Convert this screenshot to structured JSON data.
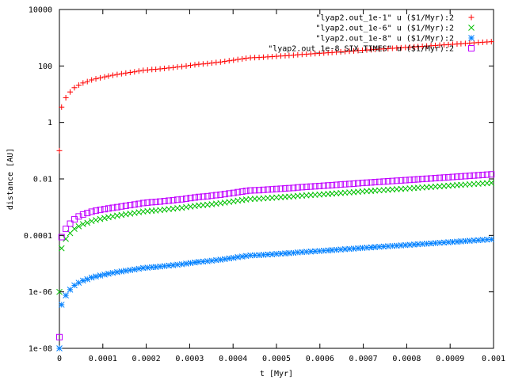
{
  "chart_data": {
    "type": "scatter",
    "xlabel": "t [Myr]",
    "ylabel": "distance [AU]",
    "xlim": [
      0,
      0.001
    ],
    "ylim": [
      1e-08,
      10000
    ],
    "yscale": "log",
    "grid": false,
    "legend_position": "top-right",
    "x_ticks": [
      {
        "value": 0,
        "label": "0"
      },
      {
        "value": 0.0001,
        "label": "0.0001"
      },
      {
        "value": 0.0002,
        "label": "0.0002"
      },
      {
        "value": 0.0003,
        "label": "0.0003"
      },
      {
        "value": 0.0004,
        "label": "0.0004"
      },
      {
        "value": 0.0005,
        "label": "0.0005"
      },
      {
        "value": 0.0006,
        "label": "0.0006"
      },
      {
        "value": 0.0007,
        "label": "0.0007"
      },
      {
        "value": 0.0008,
        "label": "0.0008"
      },
      {
        "value": 0.0009,
        "label": "0.0009"
      },
      {
        "value": 0.001,
        "label": "0.001"
      }
    ],
    "y_ticks": [
      {
        "value": 1e-08,
        "label": "1e-08"
      },
      {
        "value": 1e-06,
        "label": "1e-06"
      },
      {
        "value": 0.0001,
        "label": "0.0001"
      },
      {
        "value": 0.01,
        "label": "0.01"
      },
      {
        "value": 1,
        "label": "1"
      },
      {
        "value": 100,
        "label": "100"
      },
      {
        "value": 10000,
        "label": "10000"
      }
    ],
    "series": [
      {
        "name": "\"lyap2.out_1e-1\" u ($1/Myr):2",
        "marker": "plus",
        "color": "#ff0000",
        "x": [
          0,
          5e-06,
          1.48e-05,
          2.47e-05,
          3.46e-05,
          4.45e-05,
          5.44e-05,
          6.43e-05,
          7.42e-05,
          8.4e-05,
          9.4e-05,
          0.000104,
          0.000113,
          0.000123,
          0.000133,
          0.000143,
          0.000153,
          0.000163,
          0.000173,
          0.000183,
          0.000193,
          0.000203,
          0.000213,
          0.000222,
          0.000232,
          0.000242,
          0.000252,
          0.000262,
          0.000272,
          0.000282,
          0.000292,
          0.000302,
          0.000312,
          0.000321,
          0.000331,
          0.000341,
          0.000351,
          0.000361,
          0.000371,
          0.000381,
          0.000391,
          0.000401,
          0.000411,
          0.000421,
          0.00043,
          0.00044,
          0.00045,
          0.00046,
          0.00047,
          0.00048,
          0.00049,
          0.0005,
          0.00051,
          0.00052,
          0.000529,
          0.000539,
          0.000549,
          0.000559,
          0.000569,
          0.000579,
          0.000589,
          0.000599,
          0.000609,
          0.000619,
          0.000628,
          0.000638,
          0.000648,
          0.000658,
          0.000668,
          0.000678,
          0.000688,
          0.000698,
          0.000708,
          0.000718,
          0.000727,
          0.000737,
          0.000747,
          0.000757,
          0.000767,
          0.000777,
          0.000787,
          0.000797,
          0.000807,
          0.000817,
          0.000826,
          0.000836,
          0.000846,
          0.000856,
          0.000866,
          0.000876,
          0.000886,
          0.000896,
          0.000906,
          0.000916,
          0.000925,
          0.000935,
          0.000945,
          0.000955,
          0.000965,
          0.000975,
          0.000985,
          0.000995
        ],
        "y": [
          0.1,
          3.5,
          7.5,
          12,
          17,
          21,
          25,
          28,
          32,
          35,
          38,
          41,
          44,
          47,
          50,
          53,
          56,
          59,
          62,
          66,
          70,
          72,
          75,
          76,
          79,
          82,
          85,
          88,
          92,
          95,
          100,
          105,
          110,
          115,
          118,
          122,
          127,
          133,
          138,
          145,
          153,
          160,
          170,
          178,
          187,
          195,
          198,
          200,
          205,
          210,
          214,
          220,
          225,
          230,
          235,
          240,
          250,
          256,
          262,
          268,
          274,
          280,
          287,
          294,
          300,
          308,
          316,
          324,
          332,
          340,
          350,
          360,
          368,
          376,
          385,
          394,
          403,
          412,
          422,
          432,
          442,
          452,
          463,
          474,
          485,
          497,
          508,
          520,
          533,
          546,
          559,
          572,
          586,
          600,
          614,
          629,
          644,
          660,
          676,
          692,
          708,
          725
        ]
      },
      {
        "name": "\"lyap2.out_1e-6\" u ($1/Myr):2",
        "marker": "cross",
        "color": "#00c000",
        "x": [
          0,
          5e-06,
          1.48e-05,
          2.47e-05,
          3.46e-05,
          4.45e-05,
          5.44e-05,
          6.43e-05,
          7.42e-05,
          8.4e-05,
          9.4e-05,
          0.000104,
          0.000113,
          0.000123,
          0.000133,
          0.000143,
          0.000153,
          0.000163,
          0.000173,
          0.000183,
          0.000193,
          0.000203,
          0.000213,
          0.000222,
          0.000232,
          0.000242,
          0.000252,
          0.000262,
          0.000272,
          0.000282,
          0.000292,
          0.000302,
          0.000312,
          0.000321,
          0.000331,
          0.000341,
          0.000351,
          0.000361,
          0.000371,
          0.000381,
          0.000391,
          0.000401,
          0.000411,
          0.000421,
          0.00043,
          0.00044,
          0.00045,
          0.00046,
          0.00047,
          0.00048,
          0.00049,
          0.0005,
          0.00051,
          0.00052,
          0.000529,
          0.000539,
          0.000549,
          0.000559,
          0.000569,
          0.000579,
          0.000589,
          0.000599,
          0.000609,
          0.000619,
          0.000628,
          0.000638,
          0.000648,
          0.000658,
          0.000668,
          0.000678,
          0.000688,
          0.000698,
          0.000708,
          0.000718,
          0.000727,
          0.000737,
          0.000747,
          0.000757,
          0.000767,
          0.000777,
          0.000787,
          0.000797,
          0.000807,
          0.000817,
          0.000826,
          0.000836,
          0.000846,
          0.000856,
          0.000866,
          0.000876,
          0.000886,
          0.000896,
          0.000906,
          0.000916,
          0.000925,
          0.000935,
          0.000945,
          0.000955,
          0.000965,
          0.000975,
          0.000985,
          0.000995
        ],
        "y": [
          1e-06,
          3.5e-05,
          7.5e-05,
          0.00012,
          0.00017,
          0.00021,
          0.00025,
          0.00028,
          0.00032,
          0.00035,
          0.00038,
          0.00041,
          0.00044,
          0.00047,
          0.0005,
          0.00053,
          0.00056,
          0.00059,
          0.00062,
          0.00066,
          0.0007,
          0.00072,
          0.00075,
          0.00076,
          0.00079,
          0.00082,
          0.00085,
          0.00088,
          0.00092,
          0.00095,
          0.001,
          0.00105,
          0.0011,
          0.00115,
          0.00118,
          0.00122,
          0.00127,
          0.00133,
          0.00138,
          0.00145,
          0.00153,
          0.0016,
          0.0017,
          0.00178,
          0.00187,
          0.00195,
          0.00198,
          0.002,
          0.00205,
          0.0021,
          0.00214,
          0.0022,
          0.00225,
          0.0023,
          0.00235,
          0.0024,
          0.0025,
          0.00256,
          0.00262,
          0.00268,
          0.00274,
          0.0028,
          0.00287,
          0.00294,
          0.003,
          0.00308,
          0.00316,
          0.00324,
          0.00332,
          0.0034,
          0.0035,
          0.0036,
          0.00368,
          0.00376,
          0.00385,
          0.00394,
          0.00403,
          0.00412,
          0.00422,
          0.00432,
          0.00442,
          0.00452,
          0.00463,
          0.00474,
          0.00485,
          0.00497,
          0.00508,
          0.0052,
          0.00533,
          0.00546,
          0.00559,
          0.00572,
          0.00586,
          0.006,
          0.00614,
          0.00629,
          0.00644,
          0.0066,
          0.00676,
          0.00692,
          0.00708,
          0.00725
        ]
      },
      {
        "name": "\"lyap2.out_1e-8\" u ($1/Myr):2",
        "marker": "star",
        "color": "#0080ff",
        "x": [
          0,
          5e-06,
          1.48e-05,
          2.47e-05,
          3.46e-05,
          4.45e-05,
          5.44e-05,
          6.43e-05,
          7.42e-05,
          8.4e-05,
          9.4e-05,
          0.000104,
          0.000113,
          0.000123,
          0.000133,
          0.000143,
          0.000153,
          0.000163,
          0.000173,
          0.000183,
          0.000193,
          0.000203,
          0.000213,
          0.000222,
          0.000232,
          0.000242,
          0.000252,
          0.000262,
          0.000272,
          0.000282,
          0.000292,
          0.000302,
          0.000312,
          0.000321,
          0.000331,
          0.000341,
          0.000351,
          0.000361,
          0.000371,
          0.000381,
          0.000391,
          0.000401,
          0.000411,
          0.000421,
          0.00043,
          0.00044,
          0.00045,
          0.00046,
          0.00047,
          0.00048,
          0.00049,
          0.0005,
          0.00051,
          0.00052,
          0.000529,
          0.000539,
          0.000549,
          0.000559,
          0.000569,
          0.000579,
          0.000589,
          0.000599,
          0.000609,
          0.000619,
          0.000628,
          0.000638,
          0.000648,
          0.000658,
          0.000668,
          0.000678,
          0.000688,
          0.000698,
          0.000708,
          0.000718,
          0.000727,
          0.000737,
          0.000747,
          0.000757,
          0.000767,
          0.000777,
          0.000787,
          0.000797,
          0.000807,
          0.000817,
          0.000826,
          0.000836,
          0.000846,
          0.000856,
          0.000866,
          0.000876,
          0.000886,
          0.000896,
          0.000906,
          0.000916,
          0.000925,
          0.000935,
          0.000945,
          0.000955,
          0.000965,
          0.000975,
          0.000985,
          0.000995
        ],
        "y": [
          1e-08,
          3.5e-07,
          7.5e-07,
          1.2e-06,
          1.7e-06,
          2.1e-06,
          2.5e-06,
          2.8e-06,
          3.2e-06,
          3.5e-06,
          3.8e-06,
          4.1e-06,
          4.4e-06,
          4.7e-06,
          5e-06,
          5.3e-06,
          5.6e-06,
          5.9e-06,
          6.2e-06,
          6.6e-06,
          7e-06,
          7.2e-06,
          7.5e-06,
          7.6e-06,
          7.9e-06,
          8.2e-06,
          8.5e-06,
          8.8e-06,
          9.2e-06,
          9.5e-06,
          1e-05,
          1.05e-05,
          1.1e-05,
          1.15e-05,
          1.18e-05,
          1.22e-05,
          1.27e-05,
          1.33e-05,
          1.38e-05,
          1.45e-05,
          1.53e-05,
          1.6e-05,
          1.7e-05,
          1.78e-05,
          1.87e-05,
          1.95e-05,
          1.98e-05,
          2e-05,
          2.05e-05,
          2.1e-05,
          2.14e-05,
          2.2e-05,
          2.25e-05,
          2.3e-05,
          2.35e-05,
          2.4e-05,
          2.5e-05,
          2.56e-05,
          2.62e-05,
          2.68e-05,
          2.74e-05,
          2.8e-05,
          2.87e-05,
          2.94e-05,
          3e-05,
          3.08e-05,
          3.16e-05,
          3.24e-05,
          3.32e-05,
          3.4e-05,
          3.5e-05,
          3.6e-05,
          3.68e-05,
          3.76e-05,
          3.85e-05,
          3.94e-05,
          4.03e-05,
          4.12e-05,
          4.22e-05,
          4.32e-05,
          4.42e-05,
          4.52e-05,
          4.63e-05,
          4.74e-05,
          4.85e-05,
          4.97e-05,
          5.08e-05,
          5.2e-05,
          5.33e-05,
          5.46e-05,
          5.59e-05,
          5.72e-05,
          5.86e-05,
          6e-05,
          6.14e-05,
          6.29e-05,
          6.44e-05,
          6.6e-05,
          6.76e-05,
          6.92e-05,
          7.08e-05,
          7.25e-05
        ]
      },
      {
        "name": "\"lyap2.out_1e-8_SIX_TIMES\" u ($1/Myr):2",
        "marker": "square",
        "color": "#c000ff",
        "x": [
          0,
          5e-06,
          1.48e-05,
          2.47e-05,
          3.46e-05,
          4.45e-05,
          5.44e-05,
          6.43e-05,
          7.42e-05,
          8.4e-05,
          9.4e-05,
          0.000104,
          0.000113,
          0.000123,
          0.000133,
          0.000143,
          0.000153,
          0.000163,
          0.000173,
          0.000183,
          0.000193,
          0.000203,
          0.000213,
          0.000222,
          0.000232,
          0.000242,
          0.000252,
          0.000262,
          0.000272,
          0.000282,
          0.000292,
          0.000302,
          0.000312,
          0.000321,
          0.000331,
          0.000341,
          0.000351,
          0.000361,
          0.000371,
          0.000381,
          0.000391,
          0.000401,
          0.000411,
          0.000421,
          0.00043,
          0.00044,
          0.00045,
          0.00046,
          0.00047,
          0.00048,
          0.00049,
          0.0005,
          0.00051,
          0.00052,
          0.000529,
          0.000539,
          0.000549,
          0.000559,
          0.000569,
          0.000579,
          0.000589,
          0.000599,
          0.000609,
          0.000619,
          0.000628,
          0.000638,
          0.000648,
          0.000658,
          0.000668,
          0.000678,
          0.000688,
          0.000698,
          0.000708,
          0.000718,
          0.000727,
          0.000737,
          0.000747,
          0.000757,
          0.000767,
          0.000777,
          0.000787,
          0.000797,
          0.000807,
          0.000817,
          0.000826,
          0.000836,
          0.000846,
          0.000856,
          0.000866,
          0.000876,
          0.000886,
          0.000896,
          0.000906,
          0.000916,
          0.000925,
          0.000935,
          0.000945,
          0.000955,
          0.000965,
          0.000975,
          0.000985,
          0.000995
        ],
        "y": [
          2.5e-08,
          8.7e-05,
          0.00017,
          0.00026,
          0.00037,
          0.00047,
          0.00055,
          0.00062,
          0.00069,
          0.00075,
          0.0008,
          0.00085,
          0.0009,
          0.00095,
          0.001,
          0.00106,
          0.00112,
          0.00118,
          0.00124,
          0.00131,
          0.0014,
          0.00145,
          0.0015,
          0.00153,
          0.00158,
          0.00164,
          0.0017,
          0.00176,
          0.00184,
          0.0019,
          0.002,
          0.0021,
          0.0022,
          0.0023,
          0.00236,
          0.00244,
          0.00254,
          0.00266,
          0.00276,
          0.0029,
          0.00306,
          0.0032,
          0.0034,
          0.00356,
          0.00374,
          0.0039,
          0.00396,
          0.004,
          0.0041,
          0.0042,
          0.00428,
          0.0044,
          0.0045,
          0.0046,
          0.0047,
          0.0048,
          0.005,
          0.00512,
          0.00524,
          0.00536,
          0.00548,
          0.0056,
          0.00574,
          0.00588,
          0.006,
          0.00616,
          0.00632,
          0.00648,
          0.00664,
          0.0068,
          0.007,
          0.0072,
          0.00736,
          0.00752,
          0.0077,
          0.00788,
          0.00806,
          0.00824,
          0.00844,
          0.00864,
          0.00884,
          0.00904,
          0.00926,
          0.00948,
          0.0097,
          0.00994,
          0.01016,
          0.0104,
          0.01066,
          0.01092,
          0.01118,
          0.01144,
          0.01172,
          0.012,
          0.01228,
          0.01258,
          0.01288,
          0.0132,
          0.01352,
          0.01384,
          0.01416,
          0.0145
        ]
      }
    ]
  }
}
